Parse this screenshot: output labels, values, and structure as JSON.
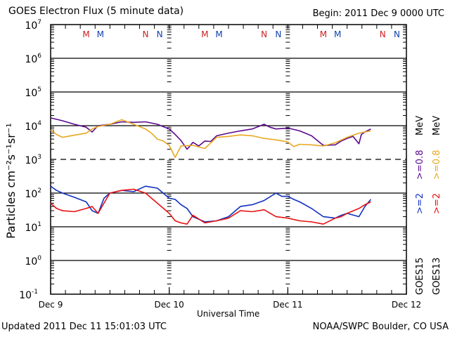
{
  "title": "GOES Electron Flux (5 minute data)",
  "begin": "Begin: 2011 Dec 9 0000 UTC",
  "updated": "Updated 2011 Dec 11 15:01:03 UTC",
  "credit": "NOAA/SWPC Boulder, CO USA",
  "colors": {
    "goes15_08": "#5a0a8c",
    "goes13_08": "#e8a820",
    "goes15_2": "#1030c0",
    "goes13_2": "#e81010",
    "marker_red": "#cc2020",
    "marker_blue": "#1040b0"
  },
  "chart_data": {
    "type": "line",
    "title": "GOES Electron Flux (5 minute data)",
    "xlabel": "Universal Time",
    "ylabel": "Particles cm⁻²s⁻¹sr⁻¹",
    "yscale": "log",
    "ylim": [
      0.1,
      10000000
    ],
    "xlim": [
      0,
      3
    ],
    "x_units": "days since 2011 Dec 9 00:00 UTC",
    "x_ticks": [
      {
        "value": 0,
        "label": "Dec 9"
      },
      {
        "value": 1,
        "label": "Dec 10"
      },
      {
        "value": 2,
        "label": "Dec 11"
      },
      {
        "value": 3,
        "label": "Dec 12"
      }
    ],
    "y_ticks": [
      {
        "exp": "7",
        "value": 10000000
      },
      {
        "exp": "6",
        "value": 1000000
      },
      {
        "exp": "5",
        "value": 100000
      },
      {
        "exp": "4",
        "value": 10000
      },
      {
        "exp": "3",
        "value": 1000
      },
      {
        "exp": "2",
        "value": 100
      },
      {
        "exp": "1",
        "value": 10
      },
      {
        "exp": "0",
        "value": 1
      },
      {
        "exp": "-1",
        "value": 0.1
      }
    ],
    "threshold_line": 1000,
    "markers": [
      {
        "x": 0.3,
        "label": "M",
        "color": "marker_red"
      },
      {
        "x": 0.42,
        "label": "M",
        "color": "marker_blue"
      },
      {
        "x": 0.8,
        "label": "N",
        "color": "marker_red"
      },
      {
        "x": 0.92,
        "label": "N",
        "color": "marker_blue"
      },
      {
        "x": 1.3,
        "label": "M",
        "color": "marker_red"
      },
      {
        "x": 1.42,
        "label": "M",
        "color": "marker_blue"
      },
      {
        "x": 1.8,
        "label": "N",
        "color": "marker_red"
      },
      {
        "x": 1.92,
        "label": "N",
        "color": "marker_blue"
      },
      {
        "x": 2.3,
        "label": "M",
        "color": "marker_red"
      },
      {
        "x": 2.42,
        "label": "M",
        "color": "marker_blue"
      },
      {
        "x": 2.8,
        "label": "N",
        "color": "marker_red"
      },
      {
        "x": 2.92,
        "label": "N",
        "color": "marker_blue"
      }
    ],
    "legend": {
      "placement": "right",
      "sats": [
        "GOES15",
        "GOES13"
      ],
      "energy_2": ">=2",
      "energy_08": ">=0.8",
      "unit": "MeV"
    },
    "series": [
      {
        "name": "GOES15 >=0.8 MeV",
        "color": "goes15_08",
        "x": [
          0,
          0.1,
          0.2,
          0.3,
          0.35,
          0.4,
          0.5,
          0.6,
          0.7,
          0.8,
          0.9,
          1.0,
          1.05,
          1.1,
          1.15,
          1.2,
          1.25,
          1.3,
          1.35,
          1.4,
          1.5,
          1.6,
          1.7,
          1.8,
          1.85,
          1.9,
          2.0,
          2.1,
          2.2,
          2.3,
          2.4,
          2.45,
          2.5,
          2.55,
          2.6,
          2.62,
          2.65,
          2.7
        ],
        "values": [
          17000,
          14000,
          11000,
          9000,
          6500,
          10000,
          11000,
          13000,
          12500,
          13000,
          11000,
          8000,
          5500,
          3600,
          2000,
          3200,
          2500,
          3500,
          3400,
          5000,
          6000,
          7000,
          8000,
          11000,
          9000,
          8000,
          8500,
          7000,
          5000,
          2600,
          2700,
          3500,
          4200,
          4800,
          2900,
          5500,
          6500,
          8000
        ]
      },
      {
        "name": "GOES13 >=0.8 MeV",
        "color": "goes13_08",
        "x": [
          0,
          0.05,
          0.1,
          0.2,
          0.3,
          0.35,
          0.4,
          0.5,
          0.6,
          0.7,
          0.8,
          0.85,
          0.9,
          0.95,
          1.0,
          1.05,
          1.1,
          1.2,
          1.3,
          1.4,
          1.5,
          1.6,
          1.7,
          1.8,
          1.9,
          2.0,
          2.05,
          2.1,
          2.2,
          2.3,
          2.4,
          2.5,
          2.6,
          2.7
        ],
        "values": [
          7500,
          5500,
          4500,
          5200,
          6000,
          8000,
          9500,
          11000,
          15000,
          11000,
          8000,
          6000,
          4000,
          3500,
          2600,
          1150,
          2500,
          2600,
          2100,
          4500,
          4800,
          5300,
          5000,
          4200,
          3800,
          3300,
          2400,
          2800,
          2700,
          2500,
          3100,
          4500,
          6000,
          7000
        ]
      },
      {
        "name": "GOES15 >=2 MeV",
        "color": "goes15_2",
        "x": [
          0,
          0.05,
          0.1,
          0.2,
          0.3,
          0.35,
          0.4,
          0.45,
          0.5,
          0.6,
          0.7,
          0.8,
          0.9,
          1.0,
          1.05,
          1.1,
          1.15,
          1.2,
          1.3,
          1.4,
          1.5,
          1.6,
          1.7,
          1.8,
          1.9,
          1.95,
          2.0,
          2.05,
          2.1,
          2.2,
          2.3,
          2.4,
          2.45,
          2.5,
          2.6,
          2.65,
          2.7
        ],
        "values": [
          160,
          120,
          100,
          75,
          55,
          30,
          25,
          70,
          100,
          120,
          110,
          160,
          140,
          70,
          65,
          45,
          35,
          20,
          14,
          15,
          20,
          40,
          45,
          60,
          100,
          80,
          80,
          65,
          55,
          35,
          20,
          18,
          22,
          25,
          20,
          40,
          65
        ]
      },
      {
        "name": "GOES13 >=2 MeV",
        "color": "goes13_2",
        "x": [
          0,
          0.05,
          0.1,
          0.2,
          0.3,
          0.35,
          0.4,
          0.45,
          0.5,
          0.6,
          0.7,
          0.8,
          0.9,
          1.0,
          1.05,
          1.1,
          1.15,
          1.2,
          1.3,
          1.4,
          1.5,
          1.6,
          1.7,
          1.8,
          1.9,
          2.0,
          2.1,
          2.2,
          2.3,
          2.4,
          2.45,
          2.5,
          2.6,
          2.65,
          2.7
        ],
        "values": [
          50,
          35,
          30,
          28,
          35,
          40,
          25,
          50,
          100,
          120,
          130,
          100,
          50,
          25,
          15,
          13,
          12,
          22,
          13,
          15,
          18,
          30,
          28,
          32,
          20,
          18,
          15,
          14,
          12,
          18,
          20,
          25,
          35,
          45,
          55
        ]
      }
    ]
  }
}
